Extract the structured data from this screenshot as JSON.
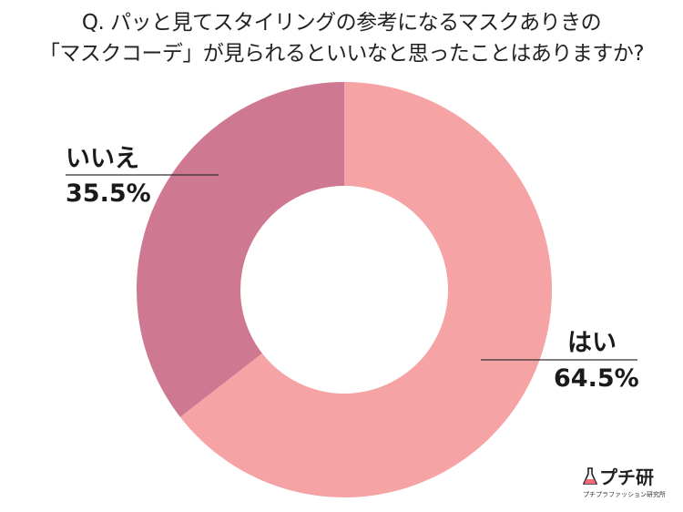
{
  "title": {
    "line1": "Q. パッと見てスタイリングの参考になるマスクありきの",
    "line2": "「マスクコーデ」が見られるといいなと思ったことはありますか?"
  },
  "labels": {
    "no": {
      "name": "いいえ",
      "value": "35.5%"
    },
    "yes": {
      "name": "はい",
      "value": "64.5%"
    }
  },
  "logo": {
    "main": "プチ研",
    "sub": "プチプラファッション研究所"
  },
  "colors": {
    "yes": "#f5a3a5",
    "no": "#cf7891",
    "background": "#ffffff",
    "leader": "#333333"
  },
  "chart_data": {
    "type": "pie",
    "variant": "donut",
    "title": "Q. パッと見てスタイリングの参考になるマスクありきの「マスクコーデ」が見られるといいなと思ったことはありますか?",
    "categories": [
      "はい",
      "いいえ"
    ],
    "values": [
      64.5,
      35.5
    ],
    "unit": "%",
    "start_angle": "12 o'clock, clockwise",
    "legend": "none (direct labels with leader lines)"
  }
}
